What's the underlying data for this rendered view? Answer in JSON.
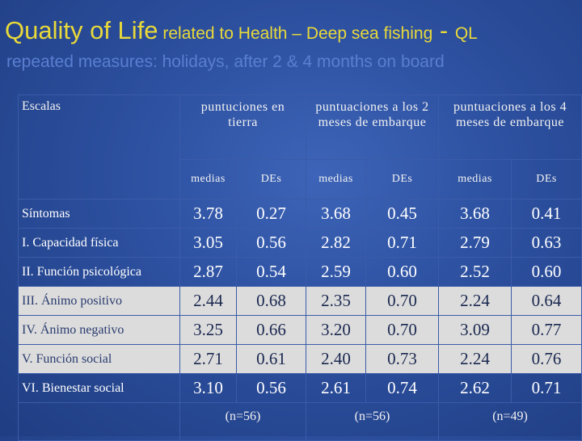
{
  "title": {
    "main": "Quality of Life",
    "rest": " related to Health – Deep sea fishing",
    "dash": " - ",
    "ql": "QL"
  },
  "subtitle": "repeated measures: holidays, after 2 & 4 months on board",
  "table": {
    "corner": "Escalas",
    "groups": [
      "puntuciones en tierra",
      "puntuaciones a los 2 meses  de embarque",
      "puntuaciones a los 4 meses  de embarque"
    ],
    "subheaders": [
      "medias",
      "DEs",
      "medias",
      "DEs",
      "medias",
      "DEs"
    ],
    "rows": [
      {
        "label": "Síntomas",
        "values": [
          "3.78",
          "0.27",
          "3.68",
          "0.45",
          "3.68",
          "0.41"
        ]
      },
      {
        "label": "I.  Capacidad física",
        "values": [
          "3.05",
          "0.56",
          "2.82",
          "0.71",
          "2.79",
          "0.63"
        ]
      },
      {
        "label": "II. Función psicológica",
        "values": [
          "2.87",
          "0.54",
          "2.59",
          "0.60",
          "2.52",
          "0.60"
        ]
      },
      {
        "label": "III. Ánimo positivo",
        "values": [
          "2.44",
          "0.68",
          "2.35",
          "0.70",
          "2.24",
          "0.64"
        ]
      },
      {
        "label": "IV. Ánimo negativo",
        "values": [
          "3.25",
          "0.66",
          "3.20",
          "0.70",
          "3.09",
          "0.77"
        ]
      },
      {
        "label": "V.  Función social",
        "values": [
          "2.71",
          "0.61",
          "2.40",
          "0.73",
          "2.24",
          "0.76"
        ]
      },
      {
        "label": "VI. Bienestar social",
        "values": [
          "3.10",
          "0.56",
          "2.61",
          "0.74",
          "2.62",
          "0.71"
        ]
      }
    ],
    "footers": [
      "(n=56)",
      "(n=56)",
      "(n=49)"
    ]
  },
  "colors": {
    "title": "#e8d93a",
    "subtitle": "#5a7ed0",
    "background": "#2c4f9e",
    "highlight": "#dcdcdc"
  }
}
